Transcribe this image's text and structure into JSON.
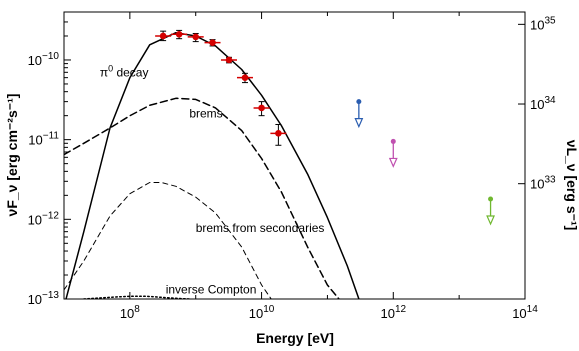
{
  "chart_data": {
    "type": "scatter",
    "title": "",
    "xlabel": "Energy [eV]",
    "ylabel_left": "νF_ν [erg cm⁻²s⁻¹]",
    "ylabel_right": "νL_ν [erg s⁻¹]",
    "x_scale": "log",
    "y_scale": "log",
    "xlim": [
      10000000.0,
      100000000000000.0
    ],
    "ylim": [
      1e-13,
      4e-10
    ],
    "x_ticks": [
      {
        "value": 100000000.0,
        "label": "10^8"
      },
      {
        "value": 10000000000.0,
        "label": "10^10"
      },
      {
        "value": 1000000000000.0,
        "label": "10^12"
      },
      {
        "value": 100000000000000.0,
        "label": "10^14"
      }
    ],
    "y_ticks_left": [
      {
        "value": 1e-13,
        "label": "10^-13"
      },
      {
        "value": 1e-12,
        "label": "10^-12"
      },
      {
        "value": 1e-11,
        "label": "10^-11"
      },
      {
        "value": 1e-10,
        "label": "10^-10"
      }
    ],
    "y_ticks_right": [
      {
        "value": 2.8e-12,
        "label": "10^33"
      },
      {
        "value": 2.8e-11,
        "label": "10^34"
      },
      {
        "value": 2.8e-10,
        "label": "10^35"
      }
    ],
    "model_curves": [
      {
        "name": "π0 decay",
        "style": "solid",
        "color": "#000000",
        "x": [
          10000000.0,
          20000000.0,
          50000000.0,
          100000000.0,
          200000000.0,
          500000000.0,
          1000000000.0,
          2000000000.0,
          5000000000.0,
          10000000000.0,
          20000000000.0,
          50000000000.0,
          100000000000.0,
          200000000000.0,
          300000000000.0
        ],
        "y": [
          8e-14,
          7e-13,
          1.4e-11,
          6e-11,
          1.55e-10,
          2.2e-10,
          2e-10,
          1.5e-10,
          7.6e-11,
          3.6e-11,
          1.5e-11,
          3.7e-12,
          1.05e-12,
          2.6e-13,
          1e-13
        ]
      },
      {
        "name": "brems",
        "style": "dashed",
        "color": "#000000",
        "x": [
          10000000.0,
          20000000.0,
          50000000.0,
          100000000.0,
          200000000.0,
          500000000.0,
          1000000000.0,
          2000000000.0,
          5000000000.0,
          10000000000.0,
          20000000000.0,
          50000000000.0,
          100000000000.0,
          150000000000.0
        ],
        "y": [
          6.5e-12,
          9e-12,
          1.4e-11,
          2e-11,
          2.7e-11,
          3.3e-11,
          3.2e-11,
          2.5e-11,
          1.3e-11,
          5.8e-12,
          2.2e-12,
          4.5e-13,
          1.5e-13,
          1e-13
        ]
      },
      {
        "name": "brems from secondaries",
        "style": "dashed-thin",
        "color": "#000000",
        "x": [
          10000000.0,
          20000000.0,
          50000000.0,
          100000000.0,
          200000000.0,
          300000000.0,
          500000000.0,
          1000000000.0,
          2000000000.0,
          5000000000.0,
          10000000000.0,
          14000000000.0
        ],
        "y": [
          1.3e-13,
          3e-13,
          1.1e-12,
          2.1e-12,
          2.9e-12,
          2.9e-12,
          2.6e-12,
          1.9e-12,
          1.2e-12,
          4.5e-13,
          1.5e-13,
          1e-13
        ]
      },
      {
        "name": "inverse Compton",
        "style": "dotted",
        "color": "#000000",
        "x": [
          20000000.0,
          50000000.0,
          100000000.0,
          180000000.0,
          300000000.0,
          500000000.0,
          800000000.0
        ],
        "y": [
          1e-13,
          1.05e-13,
          1.08e-13,
          1.08e-13,
          1.05e-13,
          1.02e-13,
          1e-13
        ]
      }
    ],
    "annotations": [
      {
        "text": "π0 decay",
        "x": 35000000.0,
        "y": 6.2e-11
      },
      {
        "text": "brems",
        "x": 800000000.0,
        "y": 1.9e-11
      },
      {
        "text": "brems from secondaries",
        "x": 1000000000.0,
        "y": 6.9e-13
      },
      {
        "text": "inverse Compton",
        "x": 350000000.0,
        "y": 1.17e-13
      }
    ],
    "data_points": {
      "color": "#d40000",
      "x": [
        320000000.0,
        560000000.0,
        1000000000.0,
        1800000000.0,
        3200000000.0,
        5600000000.0,
        10000000000.0,
        18000000000.0
      ],
      "y": [
        2e-10,
        2.1e-10,
        1.95e-10,
        1.65e-10,
        1e-10,
        6e-11,
        2.5e-11,
        1.2e-11
      ],
      "y_err_low": [
        1.75e-10,
        1.85e-10,
        1.7e-10,
        1.5e-10,
        9.2e-11,
        5.2e-11,
        2e-11,
        8.5e-12
      ],
      "y_err_high": [
        2.3e-10,
        2.35e-10,
        2.15e-10,
        1.8e-10,
        1.08e-10,
        6.8e-11,
        3e-11,
        1.55e-11
      ]
    },
    "upper_limits": [
      {
        "x": 300000000000.0,
        "y": 3e-11,
        "color": "#2a5db0"
      },
      {
        "x": 1000000000000.0,
        "y": 9.5e-12,
        "color": "#c050b0"
      },
      {
        "x": 30000000000000.0,
        "y": 1.8e-12,
        "color": "#70b830"
      }
    ]
  }
}
